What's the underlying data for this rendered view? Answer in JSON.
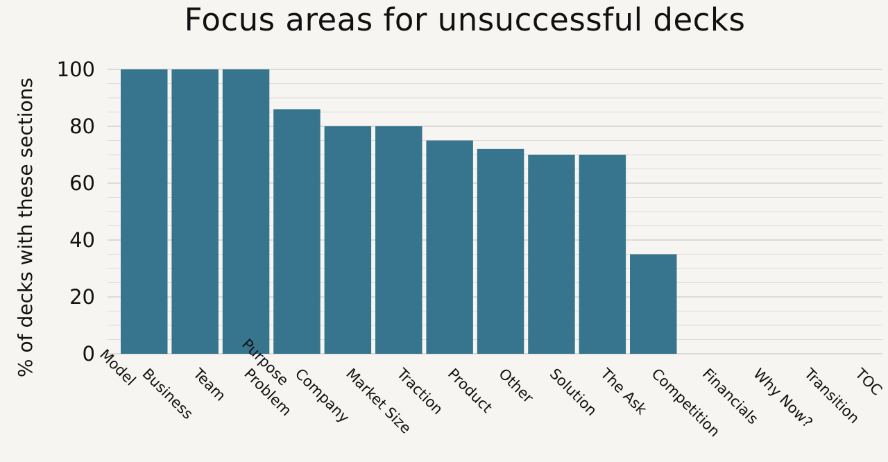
{
  "chart_data": {
    "type": "bar",
    "title": "Focus areas for unsuccessful decks",
    "xlabel": "",
    "ylabel": "% of decks with these sections",
    "ylim": [
      0,
      100
    ],
    "yticks": [
      0,
      20,
      40,
      60,
      80,
      100
    ],
    "grid": true,
    "categories": [
      "Business Model",
      "Team",
      "Problem",
      "Company Purpose",
      "Market Size",
      "Traction",
      "Product",
      "Other",
      "Solution",
      "The Ask",
      "Competition",
      "Financials",
      "Why Now?",
      "Transition",
      "TOC"
    ],
    "values": [
      100,
      100,
      100,
      86,
      80,
      80,
      75,
      72,
      70,
      70,
      35,
      0,
      0,
      0,
      0
    ],
    "colors": {
      "bar": "#36758d",
      "grid": "#dddbd6",
      "background": "#f6f5f1"
    }
  }
}
